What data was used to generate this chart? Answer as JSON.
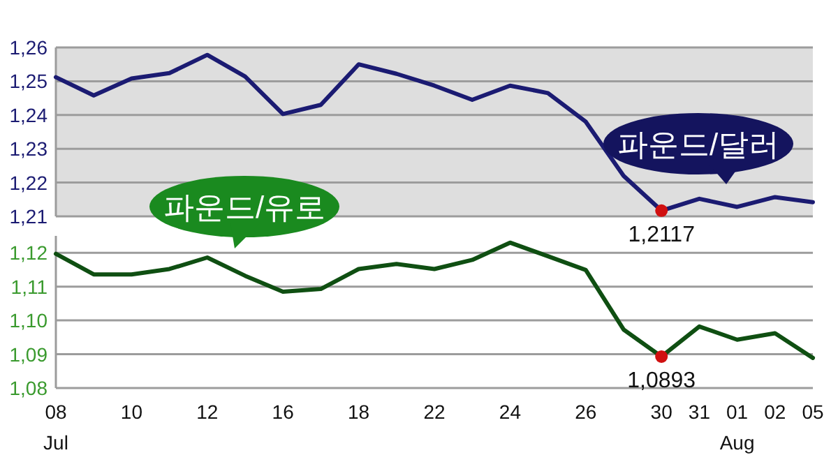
{
  "chart_data": [
    {
      "type": "line",
      "tick_labels": "y",
      "ylim": [
        1.21,
        1.26
      ],
      "yticks": [
        {
          "value": 1.21,
          "label": "1,21"
        },
        {
          "value": 1.22,
          "label": "1,22"
        },
        {
          "value": 1.23,
          "label": "1,23"
        },
        {
          "value": 1.24,
          "label": "1,24"
        },
        {
          "value": 1.25,
          "label": "1,25"
        },
        {
          "value": 1.26,
          "label": "1,26"
        }
      ],
      "grid": "y",
      "series": [
        {
          "name": "파운드/달러",
          "color": "#1b1b72",
          "values": [
            1.2512,
            1.2458,
            1.2508,
            1.2524,
            1.2578,
            1.2514,
            1.2403,
            1.243,
            1.255,
            1.2522,
            1.2487,
            1.2445,
            1.2487,
            1.2465,
            1.238,
            1.222,
            1.2117,
            1.2152,
            1.2128,
            1.2157,
            1.2142
          ]
        }
      ],
      "annotations": [
        "1,2117"
      ]
    },
    {
      "type": "line",
      "categories": [
        "08\nJul",
        null,
        "10",
        null,
        "12",
        null,
        "16",
        null,
        "18",
        null,
        "22",
        null,
        "24",
        null,
        "26",
        null,
        "30",
        "31",
        "01\nAug",
        "02",
        "05"
      ],
      "ylim": [
        1.08,
        1.125
      ],
      "yticks": [
        {
          "value": 1.08,
          "label": "1,08"
        },
        {
          "value": 1.09,
          "label": "1,09"
        },
        {
          "value": 1.1,
          "label": "1,10"
        },
        {
          "value": 1.11,
          "label": "1,11"
        },
        {
          "value": 1.12,
          "label": "1,12"
        }
      ],
      "grid": "y",
      "series": [
        {
          "name": "파운드/유로",
          "color": "#0f4f12",
          "values": [
            1.1197,
            1.1136,
            1.1136,
            1.1152,
            1.1186,
            1.1132,
            1.1085,
            1.1093,
            1.1152,
            1.1167,
            1.1152,
            1.1179,
            1.123,
            1.119,
            1.1149,
            1.0973,
            1.0893,
            1.0982,
            1.0943,
            1.0962,
            1.0889
          ]
        }
      ],
      "annotations": [
        {
          "text": "1,0893",
          "x": "30",
          "y": 1.0893
        }
      ]
    }
  ]
}
